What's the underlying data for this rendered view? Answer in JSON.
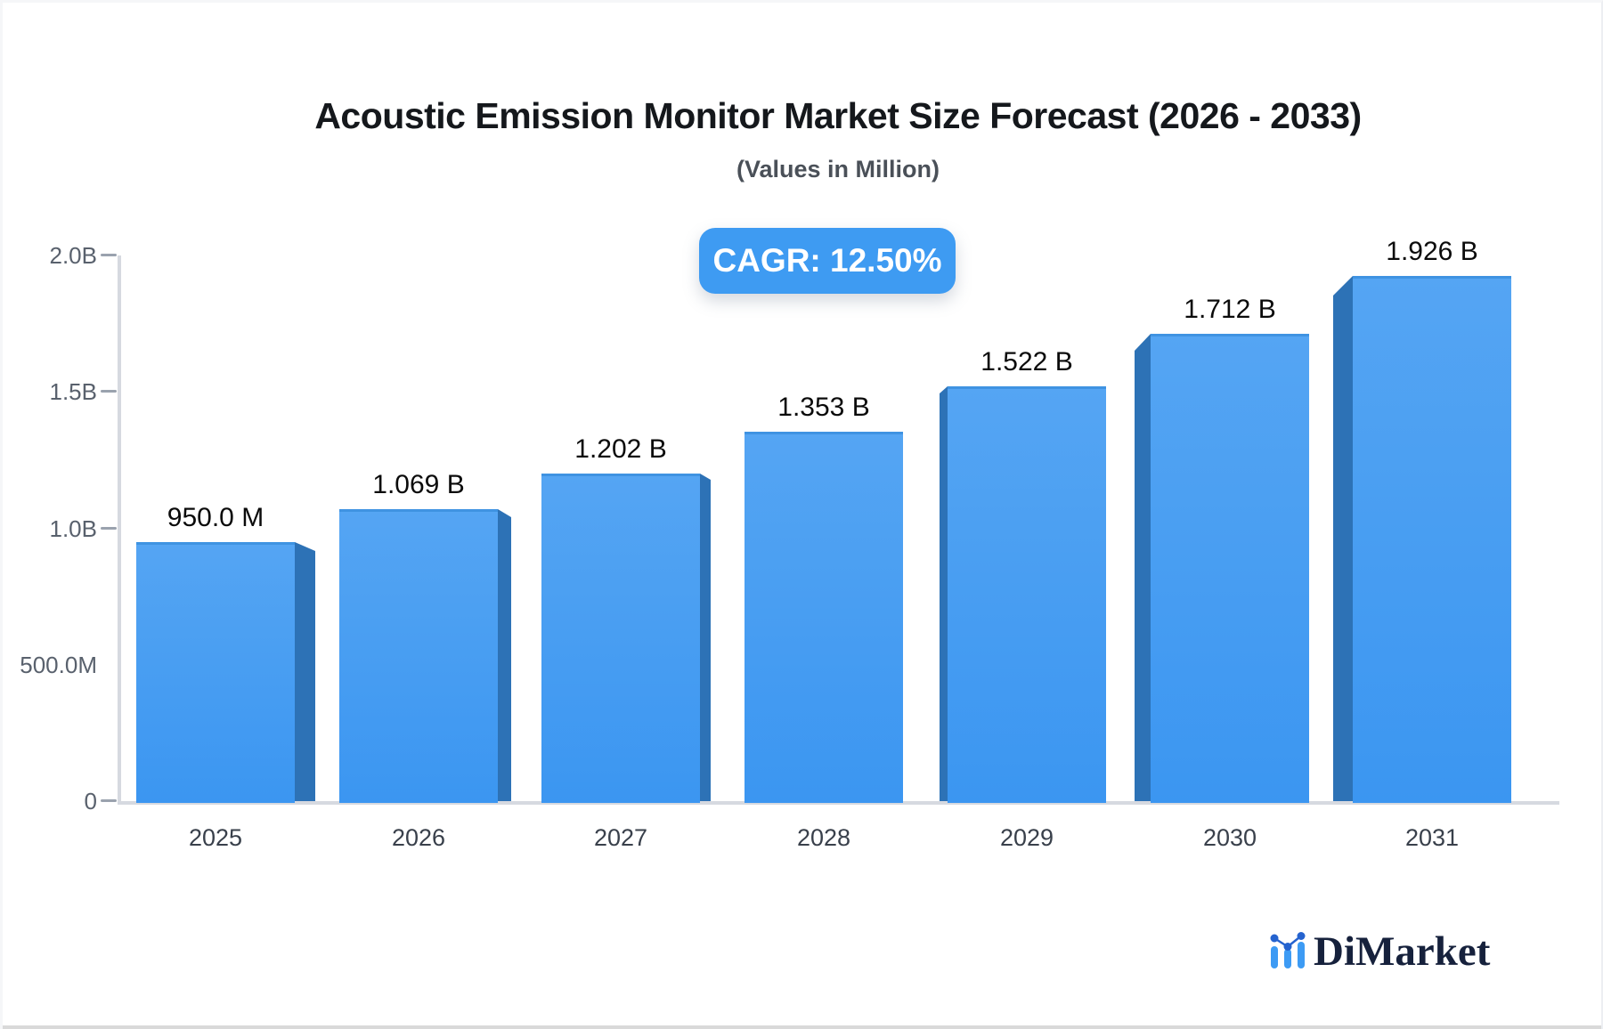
{
  "header": {
    "title": "Acoustic Emission Monitor Market Size Forecast (2026 - 2033)",
    "subtitle": "(Values in Million)"
  },
  "badge": {
    "label": "CAGR: 12.50%",
    "background": "#3E9BF2",
    "text_color": "#FFFFFF"
  },
  "logo": {
    "brand": "DiMarket",
    "icon": "mini-bar-line-chart-icon",
    "icon_bar_color": "#3D9BF4",
    "icon_dot_color": "#2563CF",
    "text_color": "#16213C"
  },
  "chart_data": {
    "type": "bar",
    "title": "Acoustic Emission Monitor Market Size Forecast (2026 - 2033)",
    "subtitle": "(Values in Million)",
    "annotation": "CAGR: 12.50%",
    "categories": [
      "2025",
      "2026",
      "2027",
      "2028",
      "2029",
      "2030",
      "2031"
    ],
    "values_in_millions": [
      950.0,
      1069,
      1202,
      1353,
      1522,
      1712,
      1926
    ],
    "bar_value_labels": [
      "950.0 M",
      "1.069 B",
      "1.202 B",
      "1.353 B",
      "1.522 B",
      "1.712 B",
      "1.926 B"
    ],
    "y_ticks": [
      {
        "label": "0",
        "value": 0,
        "dash": true
      },
      {
        "label": "500.0M",
        "value": 500,
        "dash": false
      },
      {
        "label": "1.0B",
        "value": 1000,
        "dash": true
      },
      {
        "label": "1.5B",
        "value": 1500,
        "dash": true
      },
      {
        "label": "2.0B",
        "value": 2000,
        "dash": true
      }
    ],
    "ylim": [
      0,
      2000
    ],
    "xlabel": "",
    "ylabel": "",
    "grid": false,
    "legend": false,
    "style_3d": "perspective extrusion toward center; bars left of center extrude right, bars right of center extrude left",
    "colors": {
      "bar_face_top": "#55A5F3",
      "bar_face_bottom": "#3B96F1",
      "bar_top_edge": "#3F93E2",
      "bar_side": "#2D72B6",
      "axis": "#D6D9E0",
      "tick_dash": "#9AA2AE",
      "tick_text": "#59616D",
      "value_label_text": "#0B0B0B",
      "category_text": "#39404B"
    }
  }
}
